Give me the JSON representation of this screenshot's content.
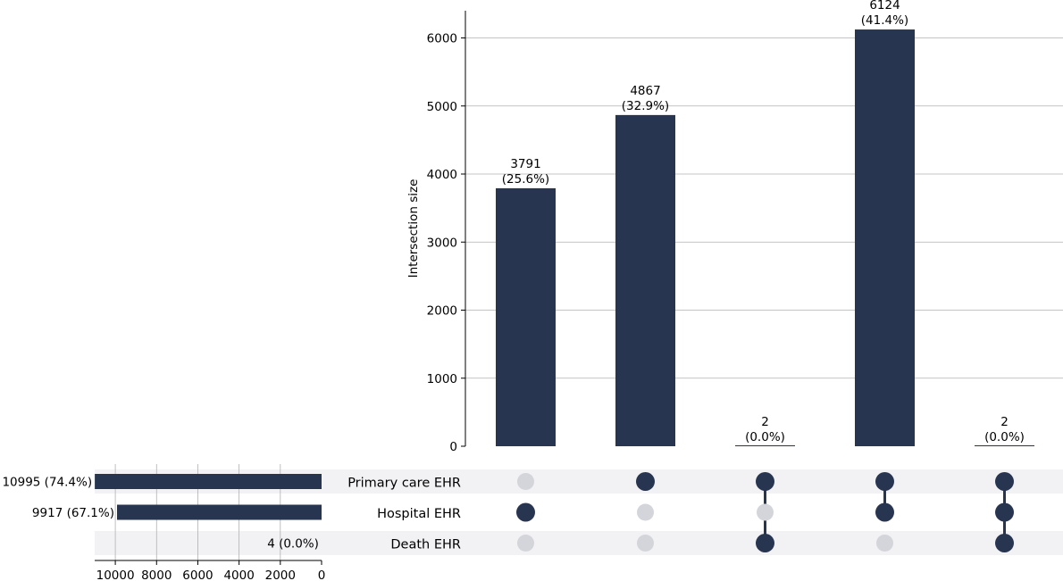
{
  "chart_data": {
    "type": "upset",
    "color": "#283550",
    "inactive_dot_color": "#d3d5db",
    "stripe_color": "#f2f2f5",
    "intersections": {
      "ylabel": "Intersection size",
      "ylim": [
        0,
        6400
      ],
      "yticks": [
        0,
        1000,
        2000,
        3000,
        4000,
        5000,
        6000
      ],
      "grid": true,
      "bars": [
        {
          "value": 3791,
          "count_label": "3791",
          "pct_label": "(25.6%)",
          "members": [
            false,
            true,
            false
          ]
        },
        {
          "value": 4867,
          "count_label": "4867",
          "pct_label": "(32.9%)",
          "members": [
            true,
            false,
            false
          ]
        },
        {
          "value": 2,
          "count_label": "2",
          "pct_label": "(0.0%)",
          "members": [
            true,
            false,
            true
          ]
        },
        {
          "value": 6124,
          "count_label": "6124",
          "pct_label": "(41.4%)",
          "members": [
            true,
            true,
            false
          ]
        },
        {
          "value": 2,
          "count_label": "2",
          "pct_label": "(0.0%)",
          "members": [
            true,
            true,
            true
          ]
        }
      ]
    },
    "sets": {
      "xlim": [
        11000,
        0
      ],
      "xticks": [
        10000,
        8000,
        6000,
        4000,
        2000,
        0
      ],
      "grid": true,
      "items": [
        {
          "name": "Primary care EHR",
          "value": 10995,
          "label": "10995 (74.4%)",
          "stripe": true
        },
        {
          "name": "Hospital EHR",
          "value": 9917,
          "label": "9917 (67.1%)",
          "stripe": false
        },
        {
          "name": "Death EHR",
          "value": 4,
          "label": "4 (0.0%)",
          "stripe": true
        }
      ]
    }
  }
}
